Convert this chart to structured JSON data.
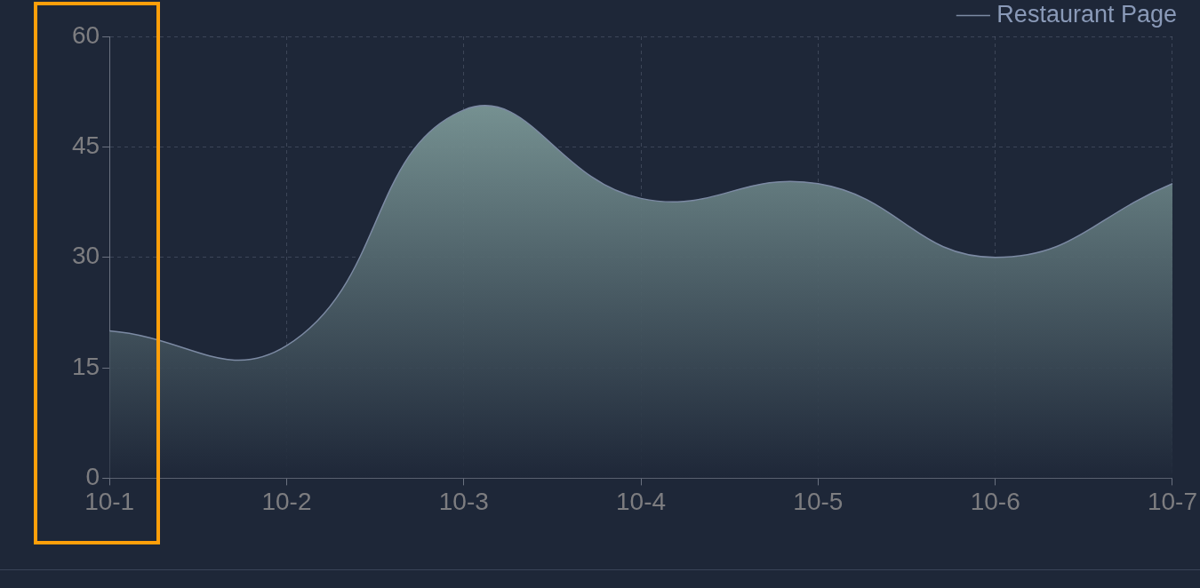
{
  "chart_data": {
    "type": "area",
    "categories": [
      "10-1",
      "10-2",
      "10-3",
      "10-4",
      "10-5",
      "10-6",
      "10-7"
    ],
    "series": [
      {
        "name": "Restaurant Page",
        "color": "#7c8aa3",
        "values": [
          20,
          18,
          50,
          38,
          40,
          30,
          40
        ]
      }
    ],
    "ylim": [
      0,
      60
    ],
    "yticks": [
      0,
      15,
      30,
      45,
      60
    ],
    "grid": true,
    "legend": "top right",
    "marker": "none",
    "line_style": "solid"
  }
}
